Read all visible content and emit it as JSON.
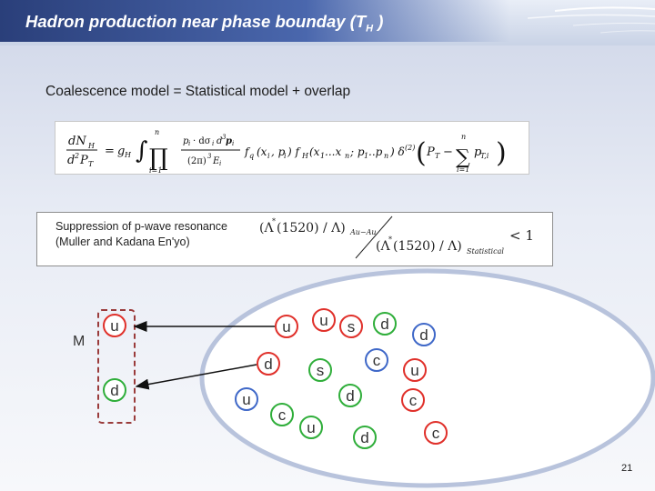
{
  "slide": {
    "title_main": "Hadron production near phase bounday (T",
    "title_sub": "H",
    "title_end": " )",
    "subtitle": "Coalescence model = Statistical model + overlap",
    "suppression_line1": "Suppression of p-wave resonance",
    "suppression_line2": "(Muller and Kadana En'yo)",
    "meson_label": "M",
    "page_number": "21"
  },
  "quarks": {
    "meson": [
      "u",
      "d"
    ],
    "fireball": [
      "u",
      "u",
      "s",
      "d",
      "d",
      "d",
      "c",
      "s",
      "u",
      "u",
      "d",
      "c",
      "c",
      "u",
      "d",
      "c"
    ]
  },
  "colors": {
    "red": "#e0302a",
    "green": "#2fae3a",
    "blue": "#3f68c8",
    "header": "#2a3f7a"
  }
}
